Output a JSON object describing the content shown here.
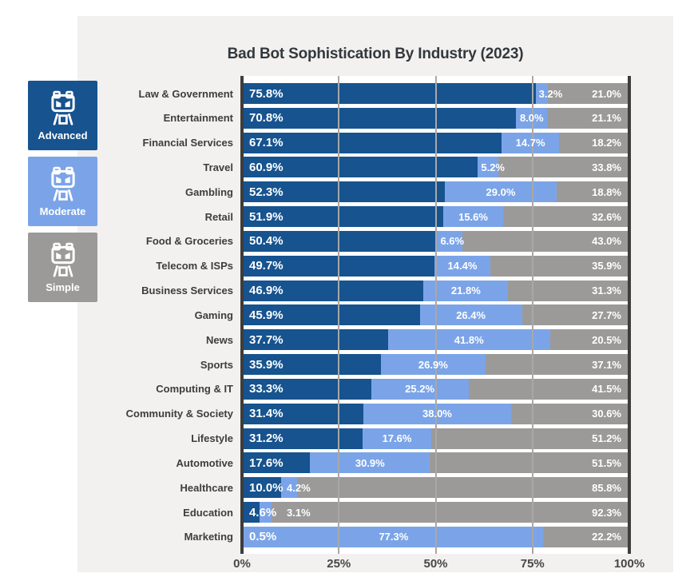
{
  "title": "Bad Bot Sophistication By Industry (2023)",
  "legend": {
    "items": [
      {
        "id": "advanced",
        "label": "Advanced",
        "color": "#16538f"
      },
      {
        "id": "moderate",
        "label": "Moderate",
        "color": "#7ba4e8"
      },
      {
        "id": "simple",
        "label": "Simple",
        "color": "#9b9a99"
      }
    ]
  },
  "chart_data": {
    "type": "bar",
    "orientation": "horizontal-stacked",
    "title": "Bad Bot Sophistication By Industry (2023)",
    "categories": [
      "Law & Government",
      "Entertainment",
      "Financial Services",
      "Travel",
      "Gambling",
      "Retail",
      "Food & Groceries",
      "Telecom & ISPs",
      "Business Services",
      "Gaming",
      "News",
      "Sports",
      "Computing & IT",
      "Community & Society",
      "Lifestyle",
      "Automotive",
      "Healthcare",
      "Education",
      "Marketing"
    ],
    "series": [
      {
        "name": "Advanced",
        "color": "#16538f",
        "values": [
          75.8,
          70.8,
          67.1,
          60.9,
          52.3,
          51.9,
          50.4,
          49.7,
          46.9,
          45.9,
          37.7,
          35.9,
          33.3,
          31.4,
          31.2,
          17.6,
          10.0,
          4.6,
          0.5
        ]
      },
      {
        "name": "Moderate",
        "color": "#7ba4e8",
        "values": [
          3.2,
          8.0,
          14.7,
          5.2,
          29.0,
          15.6,
          6.6,
          14.4,
          21.8,
          26.4,
          41.8,
          26.9,
          25.2,
          38.0,
          17.6,
          30.9,
          4.2,
          3.1,
          77.3
        ]
      },
      {
        "name": "Simple",
        "color": "#9b9a99",
        "values": [
          21.0,
          21.1,
          18.2,
          33.8,
          18.8,
          32.6,
          43.0,
          35.9,
          31.3,
          27.7,
          20.5,
          37.1,
          41.5,
          30.6,
          51.2,
          51.5,
          85.8,
          92.3,
          22.2
        ]
      }
    ],
    "value_suffix": "%",
    "xlim": [
      0,
      100
    ],
    "x_ticks": [
      "0%",
      "25%",
      "50%",
      "75%",
      "100%"
    ],
    "x_tick_positions": [
      0,
      25,
      50,
      75,
      100
    ],
    "grid": "vertical",
    "legend_position": "left"
  }
}
